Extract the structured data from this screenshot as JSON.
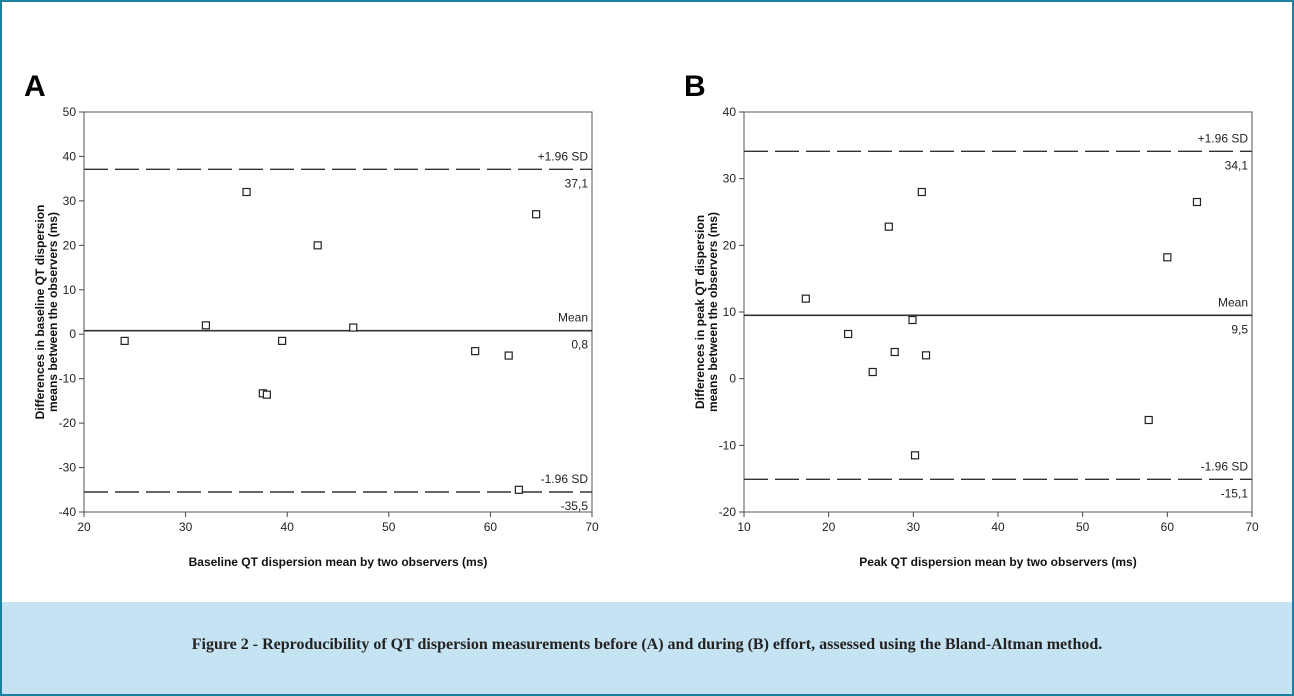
{
  "caption": "Figure 2 - Reproducibility of QT dispersion measurements before (A) and during (B) effort, assessed using the Bland-Altman method.",
  "colors": {
    "border": "#1f7fa0",
    "caption_bg": "#c5e3f3",
    "plot_line": "#333333"
  },
  "chart_data": [
    {
      "type": "scatter",
      "panel": "A",
      "xlabel": "Baseline QT dispersion mean by two observers (ms)",
      "ylabel": [
        "Differences in baseline QT dispersion",
        "means between the observers (ms)"
      ],
      "xlim": [
        20,
        70
      ],
      "ylim": [
        -40,
        50
      ],
      "xticks": [
        20,
        30,
        40,
        50,
        60,
        70
      ],
      "yticks": [
        50,
        40,
        30,
        20,
        10,
        0,
        -10,
        -20,
        -30,
        -40
      ],
      "points": [
        {
          "x": 24,
          "y": -1.5
        },
        {
          "x": 32,
          "y": 2
        },
        {
          "x": 36,
          "y": 32
        },
        {
          "x": 37.6,
          "y": -13.3
        },
        {
          "x": 38,
          "y": -13.6
        },
        {
          "x": 39.5,
          "y": -1.5
        },
        {
          "x": 43,
          "y": 20
        },
        {
          "x": 46.5,
          "y": 1.5
        },
        {
          "x": 58.5,
          "y": -3.8
        },
        {
          "x": 61.8,
          "y": -4.8
        },
        {
          "x": 62.8,
          "y": -35
        },
        {
          "x": 64.5,
          "y": 27
        }
      ],
      "lines": [
        {
          "type": "upper",
          "value": 37.1,
          "label": "+1.96 SD",
          "value_label": "37,1"
        },
        {
          "type": "mean",
          "value": 0.8,
          "label": "Mean",
          "value_label": "0,8"
        },
        {
          "type": "lower",
          "value": -35.5,
          "label": "-1.96 SD",
          "value_label": "-35,5"
        }
      ],
      "grid": false,
      "legend": "none"
    },
    {
      "type": "scatter",
      "panel": "B",
      "xlabel": "Peak QT dispersion mean by two observers (ms)",
      "ylabel": [
        "Differences in peak QT dispersion",
        "means between the observers (ms)"
      ],
      "xlim": [
        10,
        70
      ],
      "ylim": [
        -20,
        40
      ],
      "xticks": [
        10,
        20,
        30,
        40,
        50,
        60,
        70
      ],
      "yticks": [
        40,
        30,
        20,
        10,
        0,
        -10,
        -20
      ],
      "points": [
        {
          "x": 17.3,
          "y": 12
        },
        {
          "x": 22.3,
          "y": 6.7
        },
        {
          "x": 25.2,
          "y": 1
        },
        {
          "x": 27.1,
          "y": 22.8
        },
        {
          "x": 27.8,
          "y": 4
        },
        {
          "x": 29.9,
          "y": 8.8
        },
        {
          "x": 30.2,
          "y": -11.5
        },
        {
          "x": 31,
          "y": 28
        },
        {
          "x": 31.5,
          "y": 3.5
        },
        {
          "x": 57.8,
          "y": -6.2
        },
        {
          "x": 60,
          "y": 18.2
        },
        {
          "x": 63.5,
          "y": 26.5
        }
      ],
      "lines": [
        {
          "type": "upper",
          "value": 34.1,
          "label": "+1.96 SD",
          "value_label": "34,1"
        },
        {
          "type": "mean",
          "value": 9.5,
          "label": "Mean",
          "value_label": "9,5"
        },
        {
          "type": "lower",
          "value": -15.1,
          "label": "-1.96 SD",
          "value_label": "-15,1"
        }
      ],
      "grid": false,
      "legend": "none"
    }
  ]
}
